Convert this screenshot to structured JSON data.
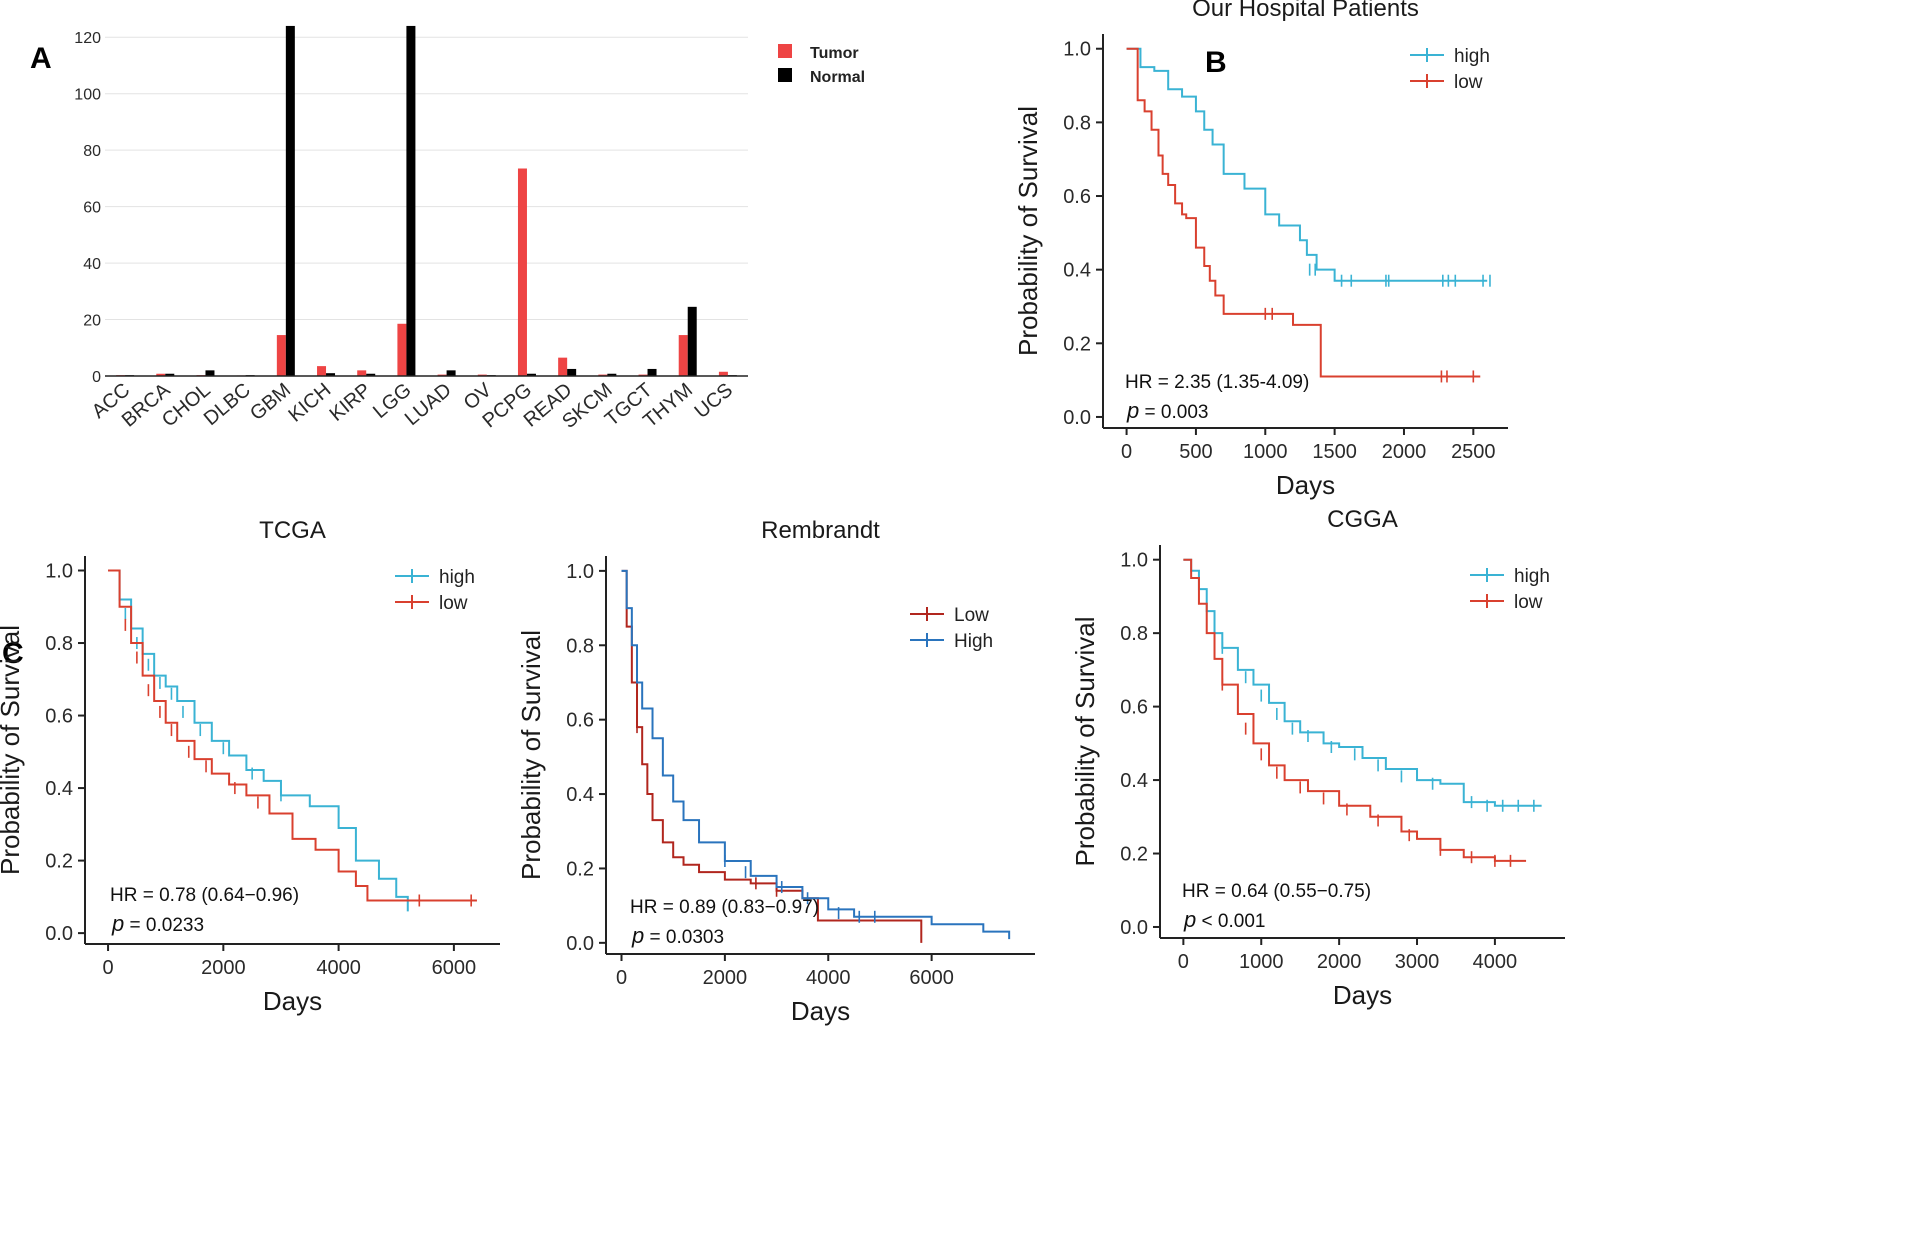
{
  "panels": {
    "a": "A",
    "b": "B",
    "c": "C"
  },
  "colors": {
    "tumor": "#ee4444",
    "normal": "#000000",
    "high_light": "#3ab3d4",
    "low_red": "#d9402f",
    "high_blue": "#2a74bd",
    "low_dark": "#b1261e"
  },
  "chart_data": [
    {
      "id": "bar",
      "type": "bar",
      "title": "",
      "categories": [
        "ACC",
        "BRCA",
        "CHOL",
        "DLBC",
        "GBM",
        "KICH",
        "KIRP",
        "LGG",
        "LUAD",
        "OV",
        "PCPG",
        "READ",
        "SKCM",
        "TGCT",
        "THYM",
        "UCS"
      ],
      "series": [
        {
          "name": "Tumor",
          "values": [
            0.3,
            0.8,
            0.3,
            0.2,
            14.5,
            3.5,
            2.0,
            18.5,
            0.5,
            0.5,
            73.5,
            6.5,
            0.5,
            0.5,
            14.5,
            1.5
          ]
        },
        {
          "name": "Normal",
          "values": [
            0.3,
            0.8,
            2.0,
            0.3,
            124,
            1.0,
            0.8,
            124,
            2.0,
            0.3,
            0.8,
            2.5,
            0.8,
            2.5,
            24.5,
            0.3
          ]
        }
      ],
      "yticks": [
        "0",
        "20",
        "40",
        "60",
        "80",
        "100",
        "120"
      ],
      "ylim": [
        0,
        130
      ],
      "xlabel": "",
      "ylabel": "",
      "legend": [
        "Tumor",
        "Normal"
      ]
    },
    {
      "id": "hosp",
      "type": "line",
      "title": "Our Hospital Patients",
      "xlabel": "Days",
      "ylabel": "Probability of Survival",
      "xlim": [
        -170,
        2750
      ],
      "ylim": [
        -0.03,
        1.04
      ],
      "xticks": [
        "0",
        "500",
        "1000",
        "1500",
        "2000",
        "2500"
      ],
      "yticks": [
        "0.0",
        "0.2",
        "0.4",
        "0.6",
        "0.8",
        "1.0"
      ],
      "legend": [
        "high",
        "low"
      ],
      "hr": "HR = 2.35 (1.35-4.09)",
      "p_symbol": "p",
      "p_value": " = 0.003",
      "series": [
        {
          "name": "high",
          "x": [
            0,
            100,
            200,
            300,
            400,
            500,
            560,
            620,
            700,
            850,
            1000,
            1100,
            1250,
            1300,
            1370,
            1500,
            2600
          ],
          "y": [
            1.0,
            0.95,
            0.94,
            0.89,
            0.87,
            0.83,
            0.78,
            0.74,
            0.66,
            0.62,
            0.55,
            0.52,
            0.48,
            0.44,
            0.4,
            0.37,
            0.37
          ],
          "censor_x": [
            1320,
            1360,
            1550,
            1620,
            1870,
            1890,
            2280,
            2320,
            2370,
            2570,
            2620
          ],
          "censor_y": [
            0.4,
            0.4,
            0.37,
            0.37,
            0.37,
            0.37,
            0.37,
            0.37,
            0.37,
            0.37,
            0.37
          ]
        },
        {
          "name": "low",
          "x": [
            0,
            80,
            130,
            180,
            230,
            260,
            300,
            350,
            400,
            430,
            500,
            560,
            600,
            640,
            700,
            1000,
            1200,
            1400,
            2550
          ],
          "y": [
            1.0,
            0.86,
            0.83,
            0.78,
            0.71,
            0.66,
            0.63,
            0.58,
            0.55,
            0.54,
            0.46,
            0.41,
            0.37,
            0.33,
            0.28,
            0.28,
            0.25,
            0.11,
            0.11
          ],
          "censor_x": [
            1000,
            1050,
            2270,
            2310,
            2500
          ],
          "censor_y": [
            0.28,
            0.28,
            0.11,
            0.11,
            0.11
          ]
        }
      ]
    },
    {
      "id": "tcga",
      "type": "line",
      "title": "TCGA",
      "xlabel": "Days",
      "ylabel": "Probability of Survival",
      "xlim": [
        -400,
        6800
      ],
      "ylim": [
        -0.03,
        1.04
      ],
      "xticks": [
        "0",
        "2000",
        "4000",
        "6000"
      ],
      "yticks": [
        "0.0",
        "0.2",
        "0.4",
        "0.6",
        "0.8",
        "1.0"
      ],
      "legend": [
        "high",
        "low"
      ],
      "hr": "HR = 0.78 (0.64−0.96)",
      "p_symbol": "p",
      "p_value": " = 0.0233",
      "series": [
        {
          "name": "high",
          "x": [
            0,
            200,
            400,
            600,
            800,
            1000,
            1200,
            1500,
            1800,
            2100,
            2400,
            2700,
            3000,
            3500,
            4000,
            4300,
            4700,
            5000,
            5200
          ],
          "y": [
            1.0,
            0.92,
            0.84,
            0.77,
            0.71,
            0.68,
            0.64,
            0.58,
            0.53,
            0.49,
            0.45,
            0.42,
            0.38,
            0.35,
            0.29,
            0.2,
            0.15,
            0.1,
            0.06
          ],
          "censor_x": [
            300,
            500,
            700,
            900,
            1100,
            1300,
            1600,
            2000,
            2500,
            3000
          ],
          "censor_y": [
            0.88,
            0.8,
            0.74,
            0.69,
            0.66,
            0.61,
            0.56,
            0.51,
            0.44,
            0.38
          ]
        },
        {
          "name": "low",
          "x": [
            0,
            200,
            400,
            600,
            800,
            1000,
            1200,
            1500,
            1800,
            2100,
            2400,
            2800,
            3200,
            3600,
            4000,
            4300,
            4500,
            6400
          ],
          "y": [
            1.0,
            0.9,
            0.8,
            0.71,
            0.64,
            0.58,
            0.53,
            0.48,
            0.44,
            0.41,
            0.38,
            0.33,
            0.26,
            0.23,
            0.17,
            0.13,
            0.09,
            0.09
          ],
          "censor_x": [
            300,
            500,
            700,
            900,
            1100,
            1400,
            1700,
            2200,
            2600,
            5400,
            6300
          ],
          "censor_y": [
            0.85,
            0.76,
            0.67,
            0.61,
            0.56,
            0.5,
            0.46,
            0.4,
            0.36,
            0.09,
            0.09
          ]
        }
      ]
    },
    {
      "id": "remb",
      "type": "line",
      "title": "Rembrandt",
      "xlabel": "Days",
      "ylabel": "Probability of Survival",
      "xlim": [
        -300,
        8000
      ],
      "ylim": [
        -0.03,
        1.04
      ],
      "xticks": [
        "0",
        "2000",
        "4000",
        "6000"
      ],
      "yticks": [
        "0.0",
        "0.2",
        "0.4",
        "0.6",
        "0.8",
        "1.0"
      ],
      "legend": [
        "Low",
        "High"
      ],
      "hr": "HR = 0.89 (0.83−0.97)",
      "p_symbol": "p",
      "p_value": " = 0.0303",
      "series": [
        {
          "name": "Low",
          "x": [
            0,
            100,
            200,
            300,
            400,
            500,
            600,
            800,
            1000,
            1200,
            1500,
            2000,
            2500,
            3000,
            3500,
            3800,
            4500,
            5000,
            5800
          ],
          "y": [
            1.0,
            0.85,
            0.7,
            0.58,
            0.48,
            0.4,
            0.33,
            0.27,
            0.23,
            0.21,
            0.19,
            0.17,
            0.16,
            0.14,
            0.12,
            0.06,
            0.06,
            0.06,
            0.0
          ],
          "censor_x": [
            300,
            2600,
            3000
          ],
          "censor_y": [
            0.58,
            0.16,
            0.14
          ]
        },
        {
          "name": "High",
          "x": [
            0,
            100,
            200,
            300,
            400,
            600,
            800,
            1000,
            1200,
            1500,
            2000,
            2500,
            3000,
            3500,
            4000,
            4500,
            5000,
            6000,
            7000,
            7500
          ],
          "y": [
            1.0,
            0.9,
            0.8,
            0.7,
            0.63,
            0.55,
            0.45,
            0.38,
            0.33,
            0.27,
            0.22,
            0.18,
            0.15,
            0.12,
            0.09,
            0.07,
            0.07,
            0.05,
            0.03,
            0.01
          ],
          "censor_x": [
            2000,
            2400,
            3100,
            3600,
            4200,
            4600,
            4900
          ],
          "censor_y": [
            0.22,
            0.19,
            0.15,
            0.12,
            0.08,
            0.07,
            0.07
          ]
        }
      ]
    },
    {
      "id": "cgga",
      "type": "line",
      "title": "CGGA",
      "xlabel": "Days",
      "ylabel": "Probability of Survival",
      "xlim": [
        -300,
        4900
      ],
      "ylim": [
        -0.03,
        1.04
      ],
      "xticks": [
        "0",
        "1000",
        "2000",
        "3000",
        "4000"
      ],
      "yticks": [
        "0.0",
        "0.2",
        "0.4",
        "0.6",
        "0.8",
        "1.0"
      ],
      "legend": [
        "high",
        "low"
      ],
      "hr": "HR = 0.64 (0.55−0.75)",
      "p_symbol": "p",
      "p_value": " < 0.001",
      "series": [
        {
          "name": "high",
          "x": [
            0,
            100,
            200,
            300,
            400,
            500,
            700,
            900,
            1100,
            1300,
            1500,
            1800,
            2000,
            2300,
            2600,
            3000,
            3300,
            3600,
            4000,
            4600
          ],
          "y": [
            1.0,
            0.97,
            0.92,
            0.86,
            0.8,
            0.76,
            0.7,
            0.66,
            0.61,
            0.56,
            0.53,
            0.5,
            0.49,
            0.46,
            0.43,
            0.4,
            0.39,
            0.34,
            0.33,
            0.33
          ],
          "censor_x": [
            500,
            800,
            1000,
            1200,
            1400,
            1600,
            1900,
            2200,
            2500,
            2800,
            3200,
            3700,
            3900,
            4100,
            4300,
            4500
          ],
          "censor_y": [
            0.76,
            0.68,
            0.63,
            0.58,
            0.54,
            0.52,
            0.49,
            0.47,
            0.44,
            0.41,
            0.39,
            0.34,
            0.33,
            0.33,
            0.33,
            0.33
          ]
        },
        {
          "name": "low",
          "x": [
            0,
            100,
            200,
            300,
            400,
            500,
            700,
            900,
            1100,
            1300,
            1600,
            2000,
            2400,
            2800,
            3000,
            3300,
            3600,
            4000,
            4400
          ],
          "y": [
            1.0,
            0.95,
            0.88,
            0.8,
            0.73,
            0.66,
            0.58,
            0.5,
            0.44,
            0.4,
            0.37,
            0.33,
            0.3,
            0.26,
            0.24,
            0.21,
            0.19,
            0.18,
            0.18
          ],
          "censor_x": [
            500,
            800,
            1000,
            1200,
            1500,
            1800,
            2100,
            2500,
            2900,
            3300,
            3700,
            4000,
            4200
          ],
          "censor_y": [
            0.66,
            0.54,
            0.47,
            0.42,
            0.38,
            0.35,
            0.32,
            0.29,
            0.25,
            0.21,
            0.19,
            0.18,
            0.18
          ]
        }
      ]
    }
  ]
}
